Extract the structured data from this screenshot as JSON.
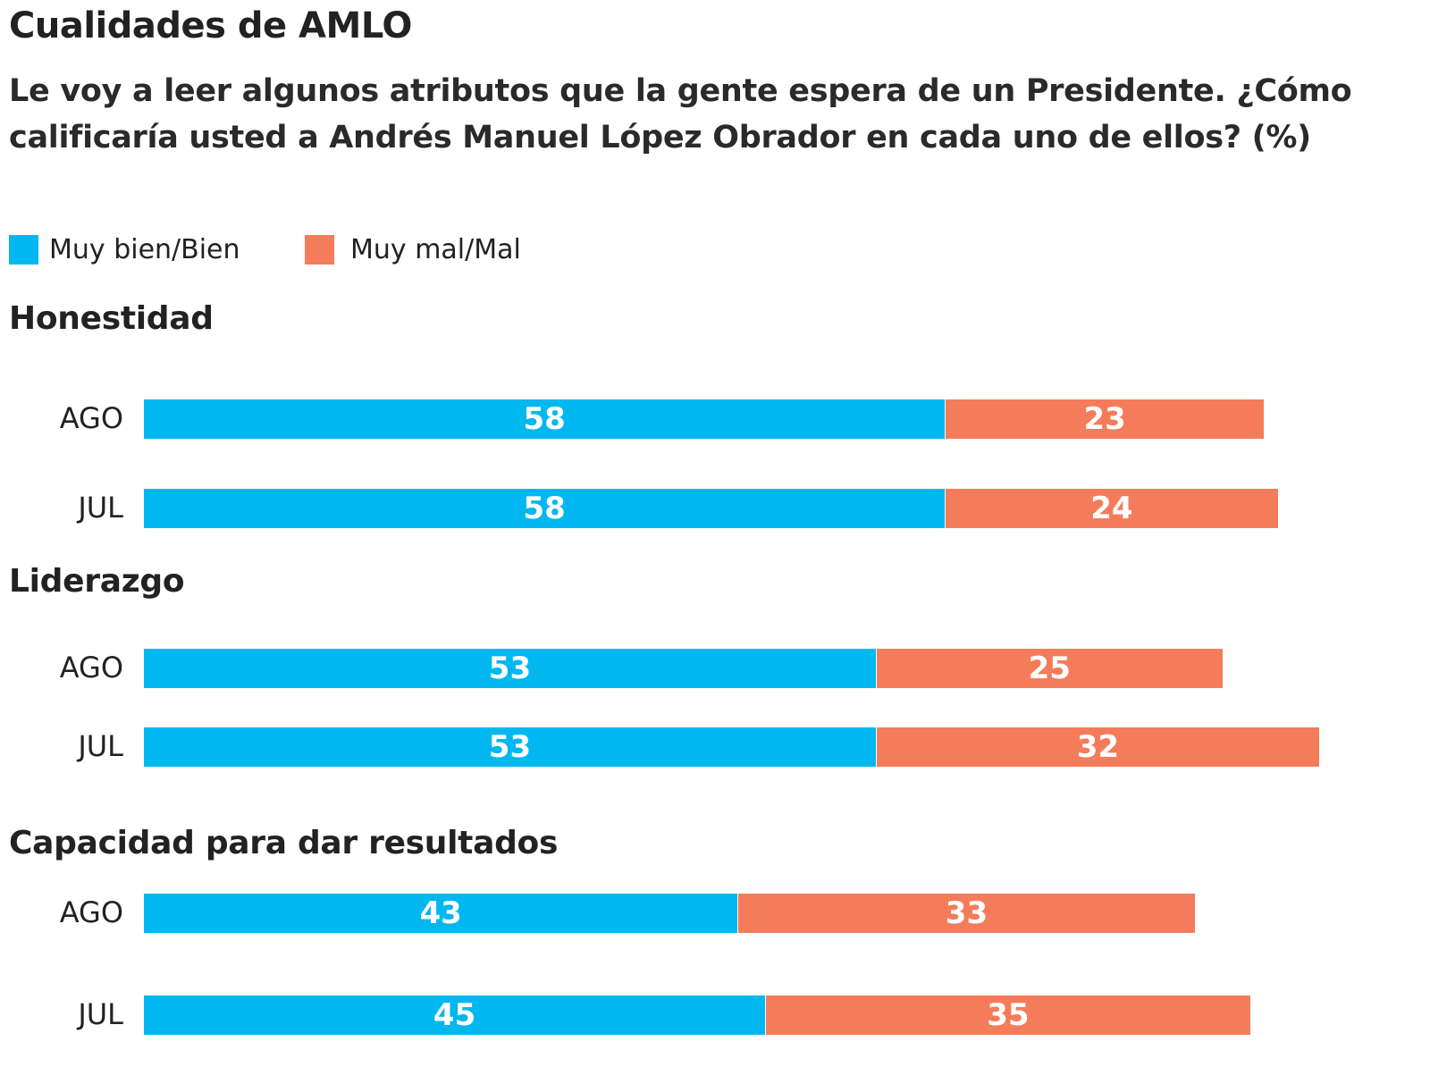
{
  "chart_data": {
    "type": "bar",
    "orientation": "horizontal",
    "stacked": true,
    "title": "Cualidades de AMLO",
    "subtitle": "Le voy a leer algunos atributos que la gente espera de un Presidente. ¿Cómo calificaría usted a Andrés Manuel López Obrador en cada uno de ellos? (%)",
    "legend": [
      "Muy bien/Bien",
      "Muy mal/Mal"
    ],
    "legend_position": "top-left",
    "colors": {
      "Muy bien/Bien": "#00b8ef",
      "Muy mal/Mal": "#f47c5a"
    },
    "grid": false,
    "groups": [
      {
        "name": "Honestidad",
        "rows": [
          {
            "label": "AGO",
            "values": [
              58,
              23
            ]
          },
          {
            "label": "JUL",
            "values": [
              58,
              24
            ]
          }
        ]
      },
      {
        "name": "Liderazgo",
        "rows": [
          {
            "label": "AGO",
            "values": [
              53,
              25
            ]
          },
          {
            "label": "JUL",
            "values": [
              53,
              32
            ]
          }
        ]
      },
      {
        "name": "Capacidad para dar resultados",
        "rows": [
          {
            "label": "AGO",
            "values": [
              43,
              33
            ]
          },
          {
            "label": "JUL",
            "values": [
              45,
              35
            ]
          }
        ]
      }
    ]
  }
}
